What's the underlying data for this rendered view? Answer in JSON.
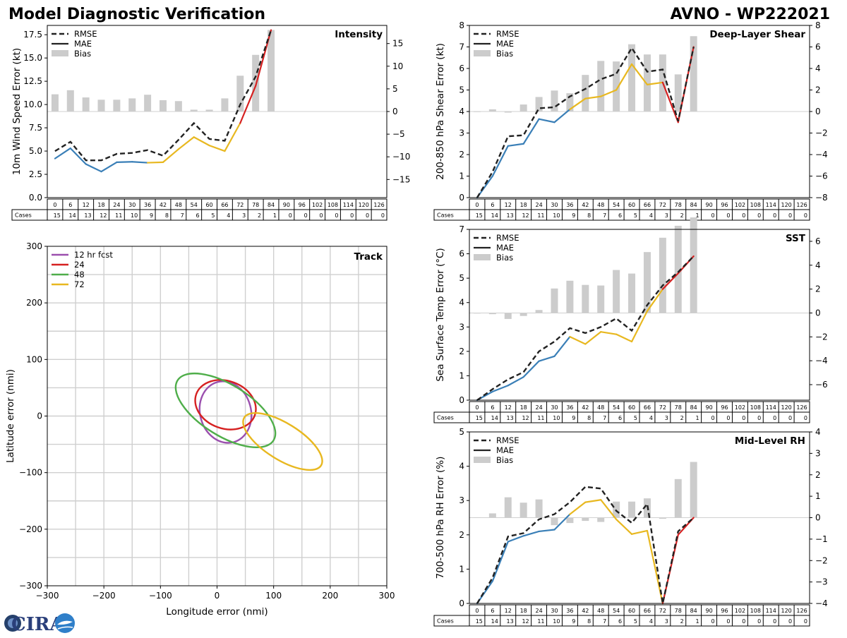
{
  "header": {
    "title": "Model Diagnostic Verification",
    "storm": "AVNO - WP222021"
  },
  "logo": {
    "text": "CIRA"
  },
  "colors": {
    "rmse": "#222222",
    "mae_early": "#3a7fb7",
    "mae_mid": "#e8b820",
    "mae_late": "#d62121",
    "bias": "#cccccc",
    "grid": "#cfcfcf",
    "track_12": "#9b4fae",
    "track_24": "#d62121",
    "track_48": "#4fae4a",
    "track_72": "#e8b820"
  },
  "legend": {
    "rmse": "RMSE",
    "mae": "MAE",
    "bias": "Bias"
  },
  "table": {
    "cases_label": "Cases",
    "hours": [
      "0",
      "6",
      "12",
      "18",
      "24",
      "30",
      "36",
      "42",
      "48",
      "54",
      "60",
      "66",
      "72",
      "78",
      "84",
      "90",
      "96",
      "102",
      "108",
      "114",
      "120",
      "126"
    ],
    "cases": [
      "15",
      "14",
      "13",
      "12",
      "11",
      "10",
      "9",
      "8",
      "7",
      "6",
      "5",
      "4",
      "3",
      "2",
      "1",
      "0",
      "0",
      "0",
      "0",
      "0",
      "0",
      "0"
    ]
  },
  "chart_data": [
    {
      "id": "intensity",
      "type": "line",
      "title": "Intensity",
      "ylabel": "10m Wind Speed Error (kt)",
      "ylim": [
        0,
        18.5
      ],
      "yticks": [
        "0.0",
        "2.5",
        "5.0",
        "7.5",
        "10.0",
        "12.5",
        "15.0",
        "17.5"
      ],
      "y2lim": [
        -19,
        19
      ],
      "y2ticks": [
        "−15",
        "−10",
        "−5",
        "0",
        "5",
        "10",
        "15"
      ],
      "x": [
        0,
        6,
        12,
        18,
        24,
        30,
        36,
        42,
        48,
        54,
        60,
        66,
        72,
        78,
        84
      ],
      "series": [
        {
          "name": "RMSE",
          "values": [
            5.0,
            6.0,
            4.0,
            4.0,
            4.7,
            4.8,
            5.1,
            4.5,
            6.2,
            8.0,
            6.3,
            6.1,
            10.0,
            13.0,
            18.0
          ]
        },
        {
          "name": "MAE",
          "values": [
            4.2,
            5.3,
            3.6,
            2.8,
            3.8,
            3.85,
            3.75,
            3.8,
            5.2,
            6.5,
            5.6,
            5.0,
            8.0,
            12.0,
            18.0
          ]
        },
        {
          "name": "Bias",
          "values": [
            3.8,
            4.7,
            3.1,
            2.6,
            2.6,
            2.9,
            3.7,
            2.5,
            2.3,
            0.4,
            0.4,
            2.9,
            7.9,
            12.5,
            18.0
          ]
        }
      ]
    },
    {
      "id": "shear",
      "type": "line",
      "title": "Deep-Layer Shear",
      "ylabel": "200-850 hPa Shear Error (kt)",
      "ylim": [
        0,
        8
      ],
      "yticks": [
        "0",
        "1",
        "2",
        "3",
        "4",
        "5",
        "6",
        "7",
        "8"
      ],
      "y2lim": [
        -8,
        8
      ],
      "y2ticks": [
        "−8",
        "−6",
        "−4",
        "−2",
        "0",
        "2",
        "4",
        "6",
        "8"
      ],
      "x": [
        0,
        6,
        12,
        18,
        24,
        30,
        36,
        42,
        48,
        54,
        60,
        66,
        72,
        78,
        84
      ],
      "series": [
        {
          "name": "RMSE",
          "values": [
            0,
            1.2,
            2.85,
            2.9,
            4.15,
            4.2,
            4.7,
            5.05,
            5.5,
            5.75,
            6.95,
            5.85,
            5.95,
            3.55,
            7.0
          ]
        },
        {
          "name": "MAE",
          "values": [
            0,
            1.0,
            2.4,
            2.5,
            3.65,
            3.5,
            4.1,
            4.6,
            4.7,
            5.0,
            6.2,
            5.25,
            5.35,
            3.5,
            7.0
          ]
        },
        {
          "name": "Bias",
          "values": [
            0,
            0.2,
            -0.1,
            0.65,
            1.35,
            1.95,
            1.7,
            3.4,
            4.7,
            4.65,
            6.25,
            5.3,
            5.3,
            3.45,
            7.0
          ]
        }
      ]
    },
    {
      "id": "sst",
      "type": "line",
      "title": "SST",
      "ylabel": "Sea Surface Temp Error (°C)",
      "ylim": [
        0,
        7
      ],
      "yticks": [
        "0",
        "1",
        "2",
        "3",
        "4",
        "5",
        "6",
        "7"
      ],
      "y2lim": [
        -7.3,
        7
      ],
      "y2ticks": [
        "−6",
        "−4",
        "−2",
        "0",
        "2",
        "4",
        "6"
      ],
      "x": [
        0,
        6,
        12,
        18,
        24,
        30,
        36,
        42,
        48,
        54,
        60,
        66,
        72,
        78,
        84
      ],
      "series": [
        {
          "name": "RMSE",
          "values": [
            0,
            0.45,
            0.85,
            1.15,
            2.0,
            2.4,
            2.95,
            2.75,
            3.0,
            3.35,
            2.85,
            3.9,
            4.7,
            5.25,
            5.9
          ]
        },
        {
          "name": "MAE",
          "values": [
            0,
            0.35,
            0.6,
            0.95,
            1.6,
            1.8,
            2.6,
            2.3,
            2.8,
            2.7,
            2.4,
            3.65,
            4.55,
            5.2,
            5.9
          ]
        },
        {
          "name": "Bias",
          "values": [
            0,
            -0.1,
            -0.5,
            -0.25,
            0.25,
            2.05,
            2.7,
            2.35,
            2.3,
            3.6,
            3.3,
            5.1,
            6.3,
            7.3,
            8.0
          ]
        }
      ]
    },
    {
      "id": "rh",
      "type": "line",
      "title": "Mid-Level RH",
      "ylabel": "700-500 hPa RH Error (%)",
      "ylim": [
        0,
        5
      ],
      "yticks": [
        "0",
        "1",
        "2",
        "3",
        "4",
        "5"
      ],
      "y2lim": [
        -4,
        4
      ],
      "y2ticks": [
        "−4",
        "−3",
        "−2",
        "−1",
        "0",
        "1",
        "2",
        "3",
        "4"
      ],
      "x": [
        0,
        6,
        12,
        18,
        24,
        30,
        36,
        42,
        48,
        54,
        60,
        66,
        72,
        78,
        84
      ],
      "series": [
        {
          "name": "RMSE",
          "values": [
            0,
            0.75,
            1.95,
            2.05,
            2.45,
            2.6,
            2.95,
            3.4,
            3.35,
            2.7,
            2.35,
            2.9,
            0,
            2.1,
            2.5
          ]
        },
        {
          "name": "MAE",
          "values": [
            0,
            0.65,
            1.8,
            1.97,
            2.1,
            2.15,
            2.6,
            2.95,
            3.02,
            2.45,
            2.02,
            2.12,
            0,
            2.0,
            2.5
          ]
        },
        {
          "name": "Bias",
          "values": [
            0.02,
            0.2,
            0.95,
            0.7,
            0.85,
            -0.35,
            -0.25,
            -0.15,
            -0.2,
            0.75,
            0.75,
            0.9,
            -0.05,
            1.8,
            2.6
          ]
        }
      ]
    },
    {
      "id": "track",
      "type": "scatter",
      "title": "Track",
      "xlabel": "Longitude error (nmi)",
      "ylabel": "Latitude error (nmi)",
      "xlim": [
        -300,
        300
      ],
      "ylim": [
        -300,
        300
      ],
      "xticks": [
        "−300",
        "−200",
        "−100",
        "0",
        "100",
        "200",
        "300"
      ],
      "yticks": [
        "−300",
        "−200",
        "−100",
        "0",
        "100",
        "200",
        "300"
      ],
      "series": [
        {
          "name": "12 hr fcst",
          "center": [
            15,
            7
          ],
          "semi_axes": [
            45,
            55
          ],
          "rotation_deg": 15
        },
        {
          "name": "24",
          "center": [
            15,
            20
          ],
          "semi_axes": [
            55,
            42
          ],
          "rotation_deg": -20
        },
        {
          "name": "48",
          "center": [
            15,
            10
          ],
          "semi_axes": [
            100,
            45
          ],
          "rotation_deg": -32
        },
        {
          "name": "72",
          "center": [
            116,
            -45
          ],
          "semi_axes": [
            80,
            32
          ],
          "rotation_deg": -32
        }
      ]
    }
  ]
}
